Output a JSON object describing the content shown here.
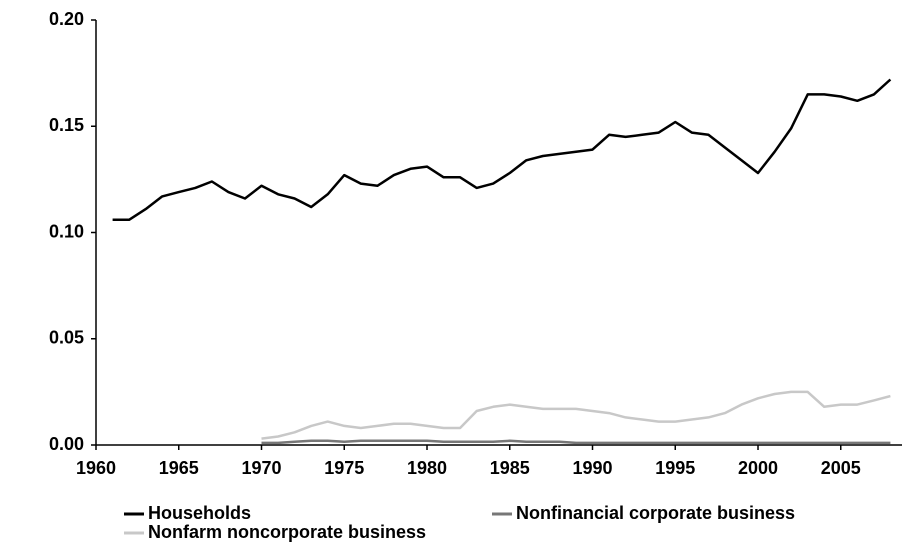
{
  "chart_data": {
    "type": "line",
    "x": [
      1961,
      1962,
      1963,
      1964,
      1965,
      1966,
      1967,
      1968,
      1969,
      1970,
      1971,
      1972,
      1973,
      1974,
      1975,
      1976,
      1977,
      1978,
      1979,
      1980,
      1981,
      1982,
      1983,
      1984,
      1985,
      1986,
      1987,
      1988,
      1989,
      1990,
      1991,
      1992,
      1993,
      1994,
      1995,
      1996,
      1997,
      1998,
      1999,
      2000,
      2001,
      2002,
      2003,
      2004,
      2005,
      2006,
      2007,
      2008
    ],
    "series": [
      {
        "name": "Households",
        "color": "#000000",
        "values": [
          0.106,
          0.106,
          0.111,
          0.117,
          0.119,
          0.121,
          0.124,
          0.119,
          0.116,
          0.122,
          0.118,
          0.116,
          0.112,
          0.118,
          0.127,
          0.123,
          0.122,
          0.127,
          0.13,
          0.131,
          0.126,
          0.126,
          0.121,
          0.123,
          0.128,
          0.134,
          0.136,
          0.137,
          0.138,
          0.139,
          0.146,
          0.145,
          0.146,
          0.147,
          0.152,
          0.147,
          0.146,
          0.14,
          0.134,
          0.128,
          0.138,
          0.149,
          0.165,
          0.165,
          0.164,
          0.162,
          0.165,
          0.172
        ]
      },
      {
        "name": "Nonfinancial corporate business",
        "color": "#777777",
        "values": [
          null,
          null,
          null,
          null,
          null,
          null,
          null,
          null,
          null,
          0.001,
          0.001,
          0.0015,
          0.002,
          0.002,
          0.0015,
          0.002,
          0.002,
          0.002,
          0.002,
          0.002,
          0.0015,
          0.0015,
          0.0015,
          0.0015,
          0.002,
          0.0015,
          0.0015,
          0.0015,
          0.001,
          0.001,
          0.001,
          0.001,
          0.001,
          0.001,
          0.001,
          0.001,
          0.001,
          0.001,
          0.001,
          0.001,
          0.001,
          0.001,
          0.001,
          0.001,
          0.001,
          0.001,
          0.001,
          0.001
        ]
      },
      {
        "name": "Nonfarm noncorporate business",
        "color": "#c8c8c8",
        "values": [
          null,
          null,
          null,
          null,
          null,
          null,
          null,
          null,
          null,
          0.003,
          0.004,
          0.006,
          0.009,
          0.011,
          0.009,
          0.008,
          0.009,
          0.01,
          0.01,
          0.009,
          0.008,
          0.008,
          0.016,
          0.018,
          0.019,
          0.018,
          0.017,
          0.017,
          0.017,
          0.016,
          0.015,
          0.013,
          0.012,
          0.011,
          0.011,
          0.012,
          0.013,
          0.015,
          0.019,
          0.022,
          0.024,
          0.025,
          0.025,
          0.018,
          0.019,
          0.019,
          0.021,
          0.023
        ]
      }
    ],
    "xlim": [
      1960,
      2008.7
    ],
    "xticks": [
      1960,
      1965,
      1970,
      1975,
      1980,
      1985,
      1990,
      1995,
      2000,
      2005
    ],
    "ylim": [
      0,
      0.2
    ],
    "yticks": [
      {
        "value": 0,
        "label": "0.00"
      },
      {
        "value": 0.05,
        "label": "0.05"
      },
      {
        "value": 0.1,
        "label": "0.10"
      },
      {
        "value": 0.15,
        "label": "0.15"
      },
      {
        "value": 0.2,
        "label": "0.20"
      }
    ],
    "grid": false
  }
}
